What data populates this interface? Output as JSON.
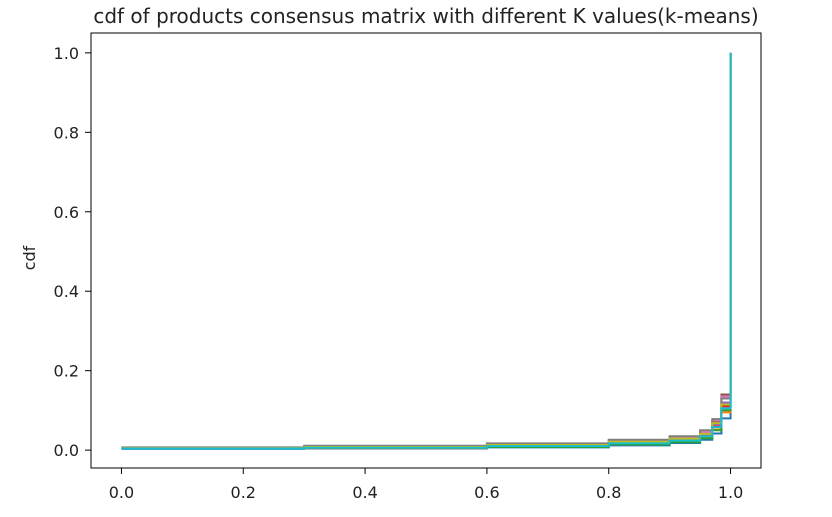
{
  "chart_data": {
    "type": "line",
    "step": true,
    "title": "cdf of products consensus matrix with different K values(k-means)",
    "xlabel": "",
    "ylabel": "cdf",
    "xlim": [
      -0.05,
      1.05
    ],
    "ylim": [
      -0.045,
      1.05
    ],
    "xticks": [
      "0.0",
      "0.2",
      "0.4",
      "0.6",
      "0.8",
      "1.0"
    ],
    "yticks": [
      "0.0",
      "0.2",
      "0.4",
      "0.6",
      "0.8",
      "1.0"
    ],
    "grid": false,
    "legend": "none",
    "series": [
      {
        "color": "#1f77b4",
        "points": [
          [
            0,
            0.003
          ],
          [
            0.3,
            0.004
          ],
          [
            0.6,
            0.007
          ],
          [
            0.8,
            0.012
          ],
          [
            0.9,
            0.018
          ],
          [
            0.95,
            0.026
          ],
          [
            0.97,
            0.042
          ],
          [
            0.985,
            0.08
          ],
          [
            1.0,
            1.0
          ]
        ]
      },
      {
        "color": "#ff7f0e",
        "points": [
          [
            0,
            0.004
          ],
          [
            0.3,
            0.005
          ],
          [
            0.6,
            0.009
          ],
          [
            0.8,
            0.015
          ],
          [
            0.9,
            0.022
          ],
          [
            0.95,
            0.032
          ],
          [
            0.97,
            0.052
          ],
          [
            0.985,
            0.095
          ],
          [
            1.0,
            1.0
          ]
        ]
      },
      {
        "color": "#2ca02c",
        "points": [
          [
            0,
            0.004
          ],
          [
            0.3,
            0.006
          ],
          [
            0.6,
            0.008
          ],
          [
            0.8,
            0.014
          ],
          [
            0.9,
            0.02
          ],
          [
            0.95,
            0.03
          ],
          [
            0.97,
            0.05
          ],
          [
            0.985,
            0.1
          ],
          [
            1.0,
            1.0
          ]
        ]
      },
      {
        "color": "#d62728",
        "points": [
          [
            0,
            0.005
          ],
          [
            0.3,
            0.007
          ],
          [
            0.6,
            0.011
          ],
          [
            0.8,
            0.018
          ],
          [
            0.9,
            0.026
          ],
          [
            0.95,
            0.038
          ],
          [
            0.97,
            0.06
          ],
          [
            0.985,
            0.11
          ],
          [
            1.0,
            1.0
          ]
        ]
      },
      {
        "color": "#9467bd",
        "points": [
          [
            0,
            0.005
          ],
          [
            0.3,
            0.008
          ],
          [
            0.6,
            0.012
          ],
          [
            0.8,
            0.02
          ],
          [
            0.9,
            0.028
          ],
          [
            0.95,
            0.04
          ],
          [
            0.97,
            0.065
          ],
          [
            0.985,
            0.12
          ],
          [
            1.0,
            1.0
          ]
        ]
      },
      {
        "color": "#8c564b",
        "points": [
          [
            0,
            0.006
          ],
          [
            0.3,
            0.009
          ],
          [
            0.6,
            0.014
          ],
          [
            0.8,
            0.022
          ],
          [
            0.9,
            0.03
          ],
          [
            0.95,
            0.043
          ],
          [
            0.97,
            0.072
          ],
          [
            0.985,
            0.14
          ],
          [
            1.0,
            1.0
          ]
        ]
      },
      {
        "color": "#e377c2",
        "points": [
          [
            0,
            0.006
          ],
          [
            0.3,
            0.01
          ],
          [
            0.6,
            0.015
          ],
          [
            0.8,
            0.024
          ],
          [
            0.9,
            0.033
          ],
          [
            0.95,
            0.046
          ],
          [
            0.97,
            0.075
          ],
          [
            0.985,
            0.135
          ],
          [
            1.0,
            1.0
          ]
        ]
      },
      {
        "color": "#7f7f7f",
        "points": [
          [
            0,
            0.007
          ],
          [
            0.3,
            0.011
          ],
          [
            0.6,
            0.017
          ],
          [
            0.8,
            0.026
          ],
          [
            0.9,
            0.035
          ],
          [
            0.95,
            0.05
          ],
          [
            0.97,
            0.078
          ],
          [
            0.985,
            0.13
          ],
          [
            1.0,
            1.0
          ]
        ]
      },
      {
        "color": "#bcbd22",
        "points": [
          [
            0,
            0.005
          ],
          [
            0.3,
            0.008
          ],
          [
            0.6,
            0.013
          ],
          [
            0.8,
            0.021
          ],
          [
            0.9,
            0.029
          ],
          [
            0.95,
            0.041
          ],
          [
            0.97,
            0.068
          ],
          [
            0.985,
            0.115
          ],
          [
            1.0,
            1.0
          ]
        ]
      },
      {
        "color": "#17becf",
        "points": [
          [
            0,
            0.004
          ],
          [
            0.3,
            0.006
          ],
          [
            0.6,
            0.01
          ],
          [
            0.8,
            0.017
          ],
          [
            0.9,
            0.024
          ],
          [
            0.95,
            0.035
          ],
          [
            0.97,
            0.058
          ],
          [
            0.985,
            0.105
          ],
          [
            1.0,
            1.0
          ]
        ]
      }
    ]
  }
}
